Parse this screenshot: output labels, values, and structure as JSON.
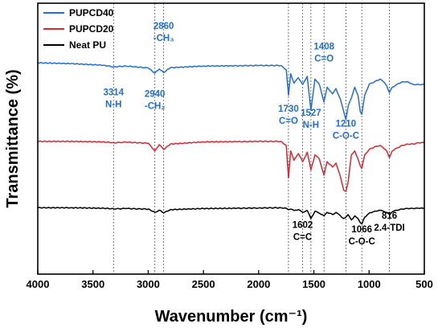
{
  "chart_data": {
    "type": "line",
    "xlabel": "Wavenumber (cm⁻¹)",
    "ylabel": "Transmittance (%)",
    "xlim": [
      4000,
      500
    ],
    "x_reversed": true,
    "xticks": [
      "4000",
      "3500",
      "3000",
      "2500",
      "2000",
      "1500",
      "1000",
      "500"
    ],
    "y_ticks_shown": false,
    "legend_position": "top-left",
    "reference_lines": [
      3314,
      2940,
      2860,
      1730,
      1602,
      1527,
      1408,
      1210,
      1066,
      816
    ],
    "series": [
      {
        "name": "PUPCD40",
        "color": "#1f6fd6",
        "baseline": 0.78,
        "x": [
          4000,
          3700,
          3400,
          3314,
          3200,
          3000,
          2940,
          2900,
          2860,
          2800,
          2500,
          2200,
          2000,
          1800,
          1750,
          1730,
          1710,
          1680,
          1640,
          1602,
          1560,
          1527,
          1490,
          1450,
          1408,
          1380,
          1330,
          1300,
          1260,
          1230,
          1210,
          1190,
          1160,
          1130,
          1100,
          1080,
          1066,
          1040,
          1000,
          950,
          900,
          870,
          840,
          816,
          790,
          750,
          700,
          650,
          600,
          550,
          500
        ],
        "y": [
          0.78,
          0.777,
          0.771,
          0.765,
          0.768,
          0.761,
          0.742,
          0.757,
          0.744,
          0.762,
          0.768,
          0.769,
          0.77,
          0.77,
          0.755,
          0.66,
          0.74,
          0.705,
          0.725,
          0.7,
          0.73,
          0.605,
          0.72,
          0.7,
          0.635,
          0.69,
          0.665,
          0.685,
          0.645,
          0.6,
          0.57,
          0.62,
          0.65,
          0.69,
          0.66,
          0.6,
          0.59,
          0.66,
          0.7,
          0.71,
          0.72,
          0.71,
          0.695,
          0.67,
          0.69,
          0.7,
          0.71,
          0.71,
          0.7,
          0.7,
          0.7
        ]
      },
      {
        "name": "PUPCD20",
        "color": "#d9262f",
        "baseline": 0.49,
        "x": [
          4000,
          3700,
          3400,
          3314,
          3200,
          3000,
          2940,
          2900,
          2860,
          2800,
          2500,
          2200,
          2000,
          1800,
          1750,
          1730,
          1710,
          1680,
          1640,
          1602,
          1560,
          1527,
          1490,
          1450,
          1408,
          1380,
          1330,
          1300,
          1260,
          1230,
          1210,
          1190,
          1160,
          1130,
          1100,
          1080,
          1066,
          1040,
          1000,
          950,
          900,
          870,
          840,
          816,
          790,
          750,
          700,
          650,
          600,
          550,
          500
        ],
        "y": [
          0.49,
          0.49,
          0.488,
          0.485,
          0.487,
          0.483,
          0.455,
          0.478,
          0.46,
          0.48,
          0.488,
          0.489,
          0.49,
          0.49,
          0.475,
          0.355,
          0.455,
          0.42,
          0.445,
          0.415,
          0.45,
          0.385,
          0.44,
          0.425,
          0.365,
          0.415,
          0.395,
          0.41,
          0.36,
          0.31,
          0.305,
          0.34,
          0.44,
          0.455,
          0.425,
          0.4,
          0.39,
          0.44,
          0.46,
          0.47,
          0.475,
          0.465,
          0.455,
          0.43,
          0.455,
          0.465,
          0.475,
          0.48,
          0.48,
          0.485,
          0.485
        ]
      },
      {
        "name": "Neat PU",
        "color": "#000000",
        "baseline": 0.245,
        "x": [
          4000,
          3700,
          3400,
          3314,
          3200,
          3000,
          2940,
          2900,
          2860,
          2800,
          2500,
          2200,
          2000,
          1800,
          1750,
          1730,
          1710,
          1680,
          1640,
          1602,
          1560,
          1527,
          1490,
          1450,
          1408,
          1380,
          1330,
          1300,
          1260,
          1230,
          1210,
          1190,
          1160,
          1130,
          1100,
          1080,
          1066,
          1040,
          1000,
          950,
          900,
          870,
          840,
          816,
          790,
          750,
          700,
          650,
          600,
          550,
          500
        ],
        "y": [
          0.245,
          0.245,
          0.243,
          0.241,
          0.242,
          0.24,
          0.228,
          0.236,
          0.226,
          0.238,
          0.242,
          0.243,
          0.244,
          0.245,
          0.243,
          0.238,
          0.24,
          0.235,
          0.238,
          0.228,
          0.235,
          0.205,
          0.232,
          0.225,
          0.215,
          0.228,
          0.22,
          0.228,
          0.215,
          0.205,
          0.21,
          0.22,
          0.2,
          0.215,
          0.205,
          0.19,
          0.185,
          0.21,
          0.225,
          0.232,
          0.236,
          0.232,
          0.228,
          0.22,
          0.23,
          0.236,
          0.24,
          0.242,
          0.242,
          0.243,
          0.243
        ]
      }
    ],
    "annotations": [
      {
        "id": "a3314",
        "lines": [
          "3314",
          "N-H"
        ],
        "x": 3314,
        "y": 0.66,
        "color": "#1f6fd6"
      },
      {
        "id": "a2940",
        "lines": [
          "2940",
          "-CH₂"
        ],
        "x": 2940,
        "y": 0.655,
        "color": "#1f6fd6"
      },
      {
        "id": "a2860",
        "lines": [
          "2860",
          "-CH₃"
        ],
        "x": 2860,
        "y": 0.905,
        "color": "#1f6fd6"
      },
      {
        "id": "a1730",
        "lines": [
          "1730",
          "C=O"
        ],
        "x": 1730,
        "y": 0.6,
        "color": "#1f6fd6"
      },
      {
        "id": "a1527",
        "lines": [
          "1527",
          "N-H"
        ],
        "x": 1527,
        "y": 0.585,
        "color": "#1f6fd6"
      },
      {
        "id": "a1408",
        "lines": [
          "1408",
          "C=O"
        ],
        "x": 1408,
        "y": 0.83,
        "color": "#1f6fd6"
      },
      {
        "id": "a1210",
        "lines": [
          "1210",
          "C-O-C"
        ],
        "x": 1210,
        "y": 0.545,
        "color": "#1f6fd6"
      },
      {
        "id": "a1602",
        "lines": [
          "1602",
          "C=C"
        ],
        "x": 1602,
        "y": 0.17,
        "color": "#000000"
      },
      {
        "id": "a1066",
        "lines": [
          "1066",
          "C-O-C"
        ],
        "x": 1066,
        "y": 0.155,
        "color": "#000000"
      },
      {
        "id": "a816",
        "lines": [
          "816",
          "2.4-TDI"
        ],
        "x": 816,
        "y": 0.205,
        "color": "#000000"
      }
    ]
  }
}
